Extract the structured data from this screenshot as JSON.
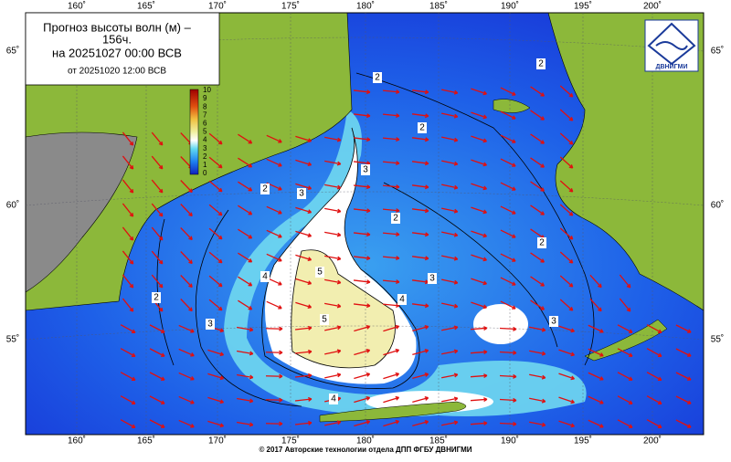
{
  "title": {
    "line1": "Прогноз высоты волн (м) –",
    "line2": "156ч.",
    "line3": "на 20251027 00:00 ВСВ",
    "line4": "от 20251020 12:00 ВСВ"
  },
  "longitude_labels": [
    "160˚",
    "165˚",
    "170˚",
    "175˚",
    "180˚",
    "185˚",
    "190˚",
    "195˚",
    "200˚"
  ],
  "latitude_labels": [
    "65˚",
    "60˚",
    "55˚"
  ],
  "scale_labels": [
    "10",
    "9",
    "8",
    "7",
    "6",
    "5",
    "4",
    "3",
    "2",
    "1",
    "0"
  ],
  "contour_labels": [
    "2",
    "2",
    "2",
    "2",
    "2",
    "2",
    "2",
    "3",
    "3",
    "3",
    "3",
    "4",
    "4",
    "4",
    "5",
    "5",
    "3"
  ],
  "logo": "ДВНИГМИ",
  "footer": "© 2017 Авторские технологии отдела ДПП ФГБУ ДВНИГМИ"
}
